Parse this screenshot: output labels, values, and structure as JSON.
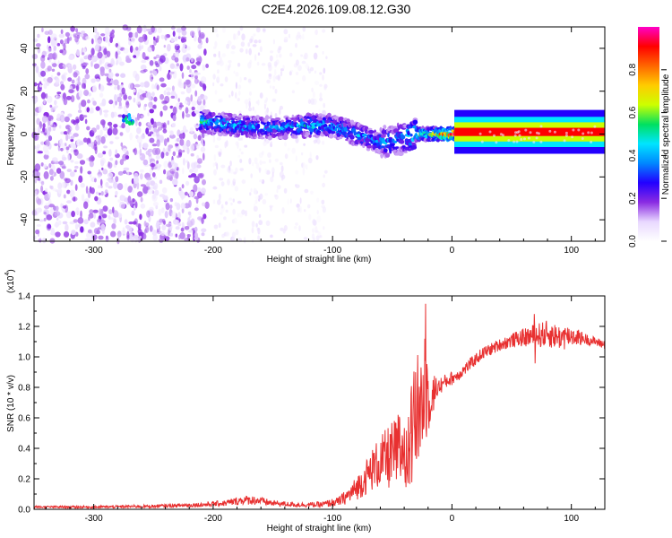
{
  "title": "C2E4.2026.109.08.12.G30",
  "chart_data": [
    {
      "type": "heatmap",
      "xlabel": "Height of straight line (km)",
      "ylabel": "Frequency (Hz)",
      "xlim": [
        -350,
        128
      ],
      "ylim": [
        -50,
        50
      ],
      "xticks": [
        -300,
        -200,
        -100,
        0,
        100
      ],
      "yticks": [
        -40,
        -20,
        0,
        20,
        40
      ],
      "colorbar": {
        "label": "Normalized spectral amplitude",
        "range": [
          0.0,
          1.0
        ],
        "ticks": [
          0.0,
          0.2,
          0.4,
          0.6,
          0.8
        ],
        "colormap": [
          "#ffffff",
          "#e8d8ff",
          "#8a2be2",
          "#2200ff",
          "#0088ff",
          "#00e5ff",
          "#00e060",
          "#ccff00",
          "#ffcc00",
          "#ff6600",
          "#ff0000",
          "#ff00c8"
        ]
      },
      "regions": {
        "broadband_noise": {
          "x_range": [
            -350,
            -205
          ],
          "f_range": [
            -50,
            50
          ],
          "amplitude": 0.12
        },
        "sparse_noise": {
          "x_range": [
            -200,
            -105
          ],
          "f_range": [
            -50,
            50
          ],
          "amplitude": 0.05
        },
        "signal_track": {
          "x": [
            -275,
            -270,
            -210,
            -200,
            -180,
            -160,
            -140,
            -120,
            -100,
            -80,
            -60,
            -40,
            -30,
            -20,
            -10,
            0,
            10,
            128
          ],
          "center_f": [
            6,
            6,
            6,
            5,
            4,
            3,
            3,
            4,
            4,
            0,
            -4,
            -2,
            0,
            0,
            0,
            0,
            1,
            1
          ],
          "amplitude": [
            0.35,
            0.35,
            0.45,
            0.4,
            0.4,
            0.35,
            0.35,
            0.45,
            0.4,
            0.4,
            0.35,
            0.4,
            0.5,
            0.6,
            0.7,
            0.9,
            1.0,
            1.0
          ]
        }
      }
    },
    {
      "type": "line",
      "xlabel": "Height of straight line (km)",
      "ylabel": "SNR (10 * v/v)",
      "yscale_label": "(x10",
      "yscale_exp": "4",
      "line_color": "#e83030",
      "xlim": [
        -350,
        128
      ],
      "ylim": [
        0.0,
        1.4
      ],
      "xticks": [
        -300,
        -200,
        -100,
        0,
        100
      ],
      "yticks": [
        0.0,
        0.2,
        0.4,
        0.6,
        0.8,
        1.0,
        1.2,
        1.4
      ],
      "ytick_labels": [
        "0.0",
        "0.2",
        "0.4",
        "0.6",
        "0.8",
        "1.0",
        "1.2",
        "1.4"
      ],
      "series": [
        {
          "x": [
            -350,
            -300,
            -250,
            -210,
            -190,
            -175,
            -165,
            -150,
            -130,
            -110,
            -95,
            -85,
            -75,
            -65,
            -55,
            -45,
            -35,
            -28,
            -22,
            -18,
            -12,
            -5,
            5,
            15,
            25,
            40,
            55,
            70,
            80,
            90,
            100,
            110,
            120,
            128
          ],
          "values": [
            0.015,
            0.015,
            0.02,
            0.03,
            0.04,
            0.06,
            0.06,
            0.04,
            0.03,
            0.03,
            0.05,
            0.1,
            0.18,
            0.28,
            0.33,
            0.38,
            0.45,
            0.65,
            0.78,
            0.75,
            0.8,
            0.84,
            0.88,
            0.95,
            1.02,
            1.08,
            1.12,
            1.14,
            1.15,
            1.13,
            1.14,
            1.12,
            1.1,
            1.08
          ],
          "noise": [
            0.008,
            0.008,
            0.01,
            0.015,
            0.02,
            0.03,
            0.03,
            0.02,
            0.015,
            0.02,
            0.03,
            0.06,
            0.1,
            0.15,
            0.2,
            0.25,
            0.35,
            0.4,
            0.35,
            0.2,
            0.06,
            0.05,
            0.04,
            0.04,
            0.04,
            0.04,
            0.05,
            0.08,
            0.09,
            0.08,
            0.07,
            0.04,
            0.03,
            0.03
          ]
        }
      ]
    }
  ]
}
